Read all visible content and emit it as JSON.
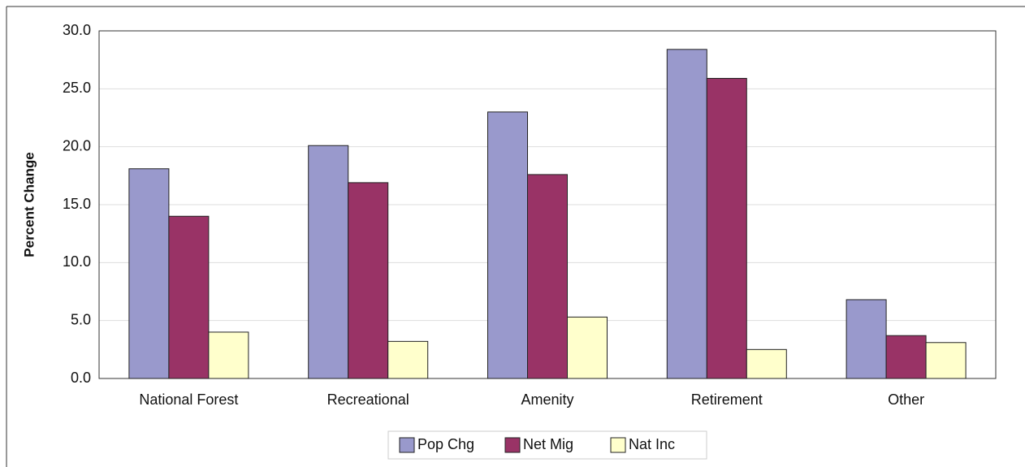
{
  "chart_data": {
    "type": "bar",
    "y_label": "Percent Change",
    "categories": [
      "National Forest",
      "Recreational",
      "Amenity",
      "Retirement",
      "Other"
    ],
    "series": [
      {
        "name": "Pop Chg",
        "color": "#9999cc",
        "values": [
          18.1,
          20.1,
          23.0,
          28.4,
          6.8
        ]
      },
      {
        "name": "Net Mig",
        "color": "#993366",
        "values": [
          14.0,
          16.9,
          17.6,
          25.9,
          3.7
        ]
      },
      {
        "name": "Nat Inc",
        "color": "#ffffcc",
        "values": [
          4.0,
          3.2,
          5.3,
          2.5,
          3.1
        ]
      }
    ],
    "ylim": [
      0,
      30
    ],
    "yticks": [
      {
        "value": 0,
        "label": "0.0"
      },
      {
        "value": 5,
        "label": "5.0"
      },
      {
        "value": 10,
        "label": "10.0"
      },
      {
        "value": 15,
        "label": "15.0"
      },
      {
        "value": 20,
        "label": "20.0"
      },
      {
        "value": 25,
        "label": "25.0"
      },
      {
        "value": 30,
        "label": "30.0"
      }
    ],
    "grid": true,
    "legend": "bottom"
  }
}
